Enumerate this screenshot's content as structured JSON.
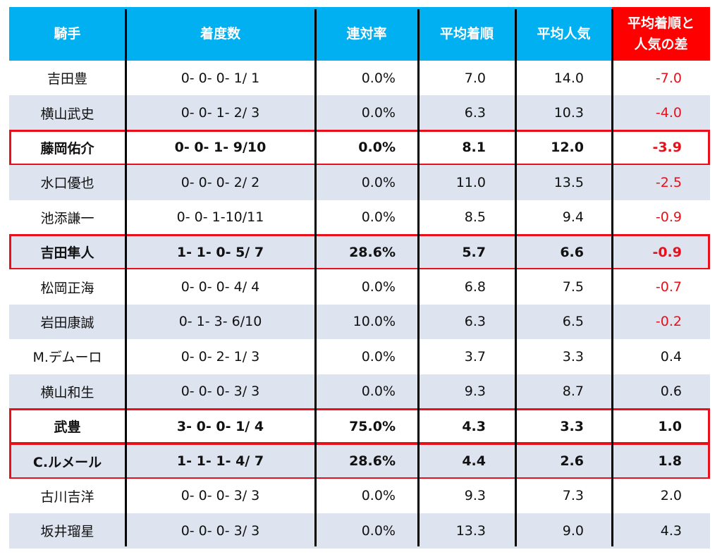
{
  "table": {
    "header": [
      "騎手",
      "着度数",
      "連対率",
      "平均着順",
      "平均人気",
      "平均着順と人気の差"
    ],
    "rows": [
      [
        "吉田豊",
        "0- 0- 0- 1/ 1",
        "0.0%",
        "7.0",
        "14.0",
        "-7.0"
      ],
      [
        "横山武史",
        "0- 0- 1- 2/ 3",
        "0.0%",
        "6.3",
        "10.3",
        "-4.0"
      ],
      [
        "藤岡佑介",
        "0- 0- 1- 9/10",
        "0.0%",
        "8.1",
        "12.0",
        "-3.9"
      ],
      [
        "水口優也",
        "0- 0- 0- 2/ 2",
        "0.0%",
        "11.0",
        "13.5",
        "-2.5"
      ],
      [
        "池添謙一",
        "0- 0- 1-10/11",
        "0.0%",
        "8.5",
        "9.4",
        "-0.9"
      ],
      [
        "吉田隼人",
        "1- 1- 0- 5/ 7",
        "28.6%",
        "5.7",
        "6.6",
        "-0.9"
      ],
      [
        "松岡正海",
        "0- 0- 0- 4/ 4",
        "0.0%",
        "6.8",
        "7.5",
        "-0.7"
      ],
      [
        "岩田康誠",
        "0- 1- 3- 6/10",
        "10.0%",
        "6.3",
        "6.5",
        "-0.2"
      ],
      [
        "M.デムーロ",
        "0- 0- 2- 1/ 3",
        "0.0%",
        "3.7",
        "3.3",
        "0.4"
      ],
      [
        "横山和生",
        "0- 0- 0- 3/ 3",
        "0.0%",
        "9.3",
        "8.7",
        "0.6"
      ],
      [
        "武豊",
        "3- 0- 0- 1/ 4",
        "75.0%",
        "4.3",
        "3.3",
        "1.0"
      ],
      [
        "C.ルメール",
        "1- 1- 1- 4/ 7",
        "28.6%",
        "4.4",
        "2.6",
        "1.8"
      ],
      [
        "古川吉洋",
        "0- 0- 0- 3/ 3",
        "0.0%",
        "9.3",
        "7.3",
        "2.0"
      ],
      [
        "坂井瑠星",
        "0- 0- 0- 3/ 3",
        "0.0%",
        "13.3",
        "9.0",
        "4.3"
      ]
    ]
  }
}
